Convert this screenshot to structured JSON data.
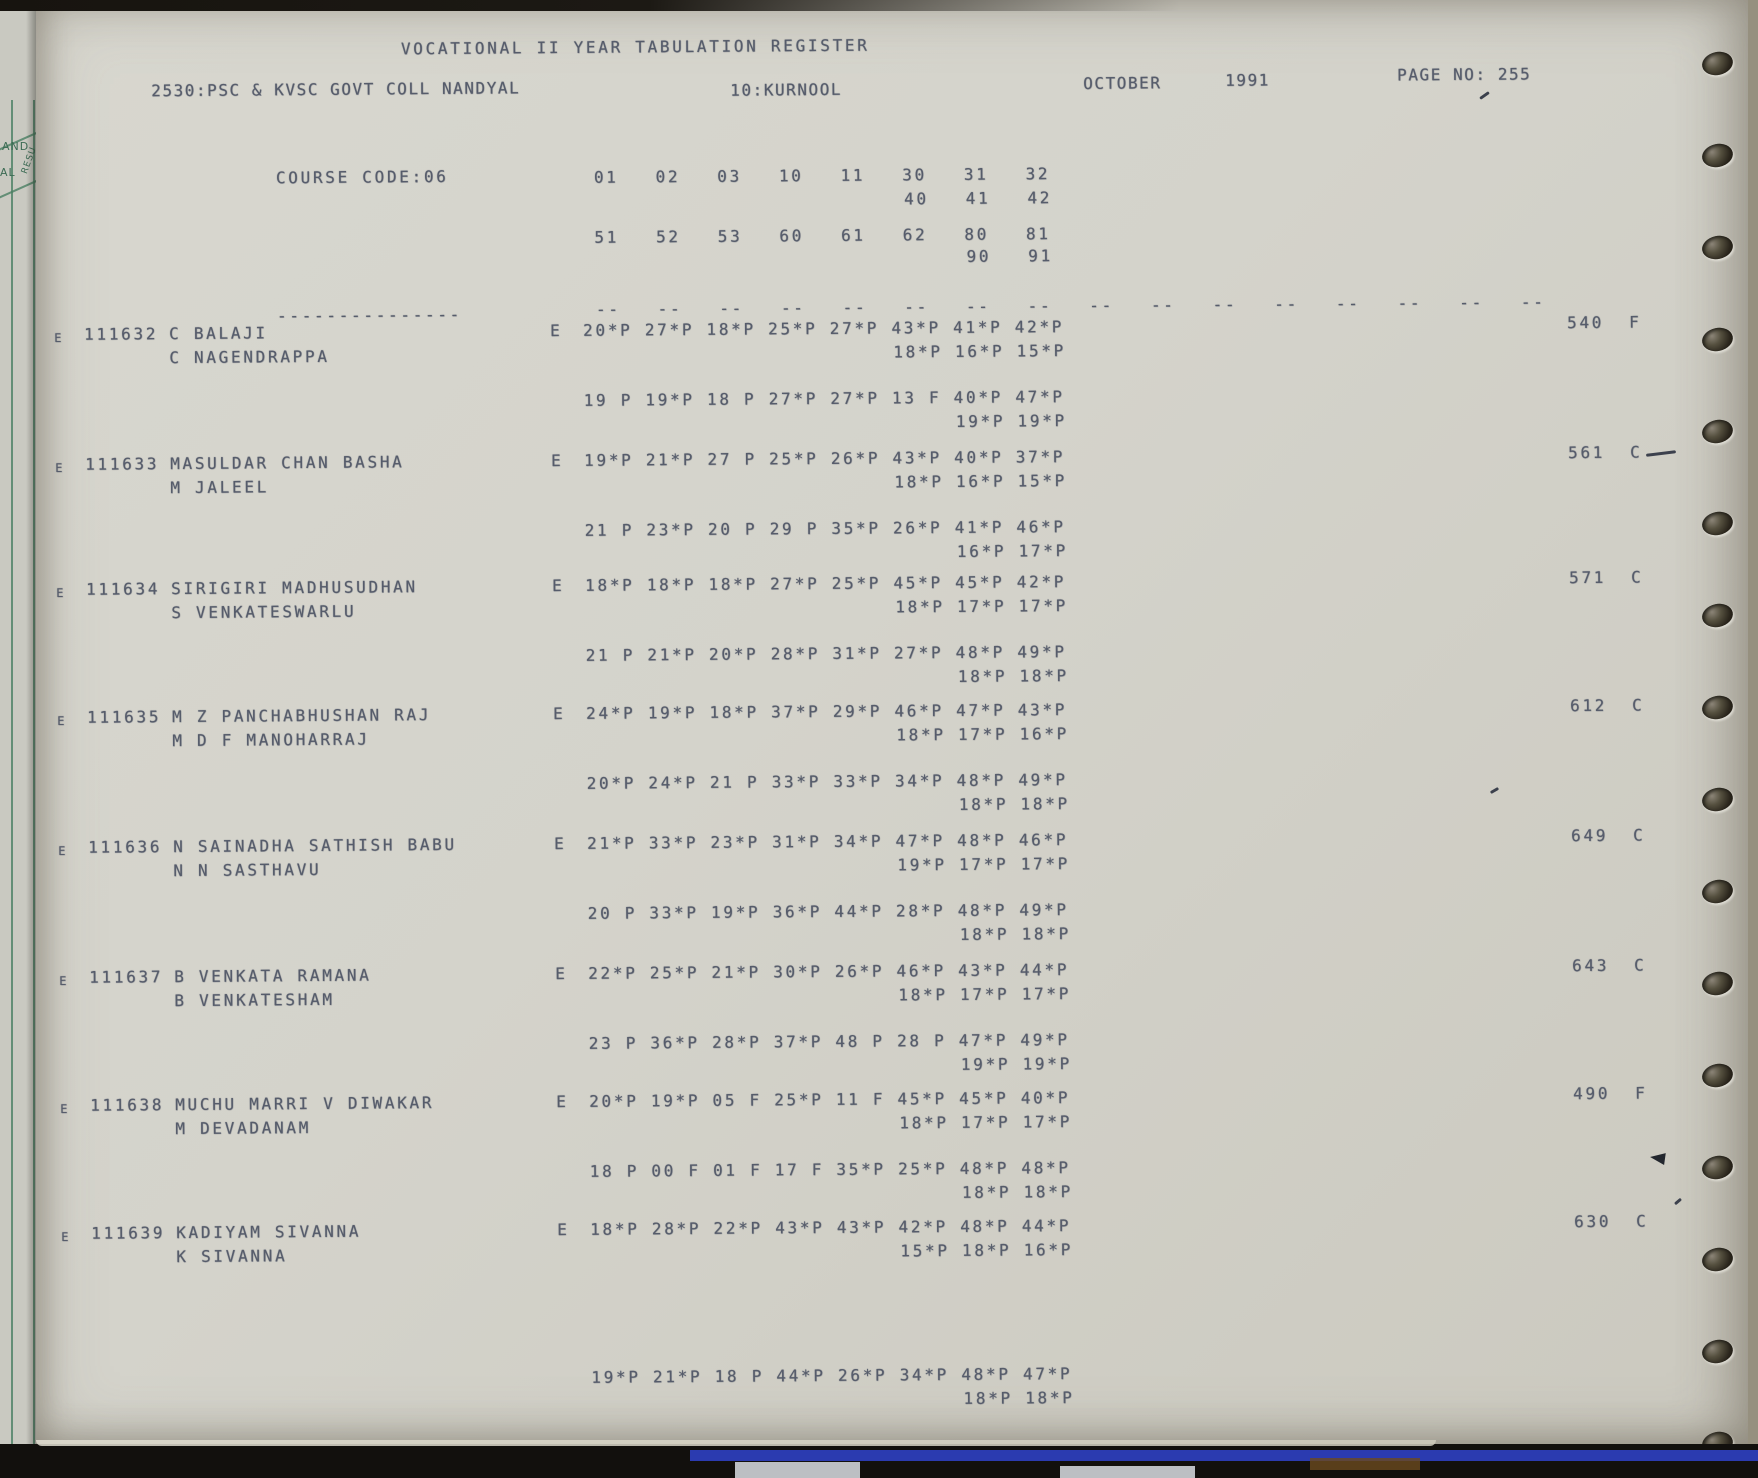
{
  "header": {
    "title": "VOCATIONAL II YEAR TABULATION REGISTER",
    "college": "2530:PSC & KVSC GOVT COLL NANDYAL",
    "district": "10:KURNOOL",
    "month": "OCTOBER",
    "year": "1991",
    "page_no": "PAGE NO: 255"
  },
  "course": {
    "label": "COURSE CODE:06",
    "codes_row1": [
      "01",
      "02",
      "03",
      "10",
      "11",
      "30",
      "31",
      "32"
    ],
    "codes_row1b": [
      "40",
      "41",
      "42"
    ],
    "codes_row2": [
      "51",
      "52",
      "53",
      "60",
      "61",
      "62",
      "80",
      "81"
    ],
    "codes_row2b": [
      "90",
      "91"
    ],
    "dash_label": "---------------",
    "dash_columns": [
      "--",
      "--",
      "--",
      "--",
      "--",
      "--",
      "--",
      "--",
      "--",
      "--",
      "--",
      "--",
      "--",
      "--",
      "--",
      "--"
    ]
  },
  "students": [
    {
      "medium": "E",
      "roll": "111632",
      "name": "C BALAJI",
      "father_name": "C NAGENDRAPPA",
      "flag": "E",
      "marks_row1": [
        "20*P",
        "27*P",
        "18*P",
        "25*P",
        "27*P",
        "43*P",
        "41*P",
        "42*P"
      ],
      "marks_row1b": [
        "18*P",
        "16*P",
        "15*P"
      ],
      "marks_row2": [
        "19 P",
        "19*P",
        "18 P",
        "27*P",
        "27*P",
        "13 F",
        "40*P",
        "47*P"
      ],
      "marks_row2b": [
        "19*P",
        "19*P"
      ],
      "total": "540",
      "result": "F"
    },
    {
      "medium": "E",
      "roll": "111633",
      "name": "MASULDAR CHAN BASHA",
      "father_name": "M JALEEL",
      "flag": "E",
      "marks_row1": [
        "19*P",
        "21*P",
        "27 P",
        "25*P",
        "26*P",
        "43*P",
        "40*P",
        "37*P"
      ],
      "marks_row1b": [
        "18*P",
        "16*P",
        "15*P"
      ],
      "marks_row2": [
        "21 P",
        "23*P",
        "20 P",
        "29 P",
        "35*P",
        "26*P",
        "41*P",
        "46*P"
      ],
      "marks_row2b": [
        "16*P",
        "17*P"
      ],
      "total": "561",
      "result": "C"
    },
    {
      "medium": "E",
      "roll": "111634",
      "name": "SIRIGIRI MADHUSUDHAN",
      "father_name": "S VENKATESWARLU",
      "flag": "E",
      "marks_row1": [
        "18*P",
        "18*P",
        "18*P",
        "27*P",
        "25*P",
        "45*P",
        "45*P",
        "42*P"
      ],
      "marks_row1b": [
        "18*P",
        "17*P",
        "17*P"
      ],
      "marks_row2": [
        "21 P",
        "21*P",
        "20*P",
        "28*P",
        "31*P",
        "27*P",
        "48*P",
        "49*P"
      ],
      "marks_row2b": [
        "18*P",
        "18*P"
      ],
      "total": "571",
      "result": "C"
    },
    {
      "medium": "E",
      "roll": "111635",
      "name": "M Z PANCHABHUSHAN RAJ",
      "father_name": "M D F MANOHARRAJ",
      "flag": "E",
      "marks_row1": [
        "24*P",
        "19*P",
        "18*P",
        "37*P",
        "29*P",
        "46*P",
        "47*P",
        "43*P"
      ],
      "marks_row1b": [
        "18*P",
        "17*P",
        "16*P"
      ],
      "marks_row2": [
        "20*P",
        "24*P",
        "21 P",
        "33*P",
        "33*P",
        "34*P",
        "48*P",
        "49*P"
      ],
      "marks_row2b": [
        "18*P",
        "18*P"
      ],
      "total": "612",
      "result": "C"
    },
    {
      "medium": "E",
      "roll": "111636",
      "name": "N SAINADHA SATHISH BABU",
      "father_name": "N N SASTHAVU",
      "flag": "E",
      "marks_row1": [
        "21*P",
        "33*P",
        "23*P",
        "31*P",
        "34*P",
        "47*P",
        "48*P",
        "46*P"
      ],
      "marks_row1b": [
        "19*P",
        "17*P",
        "17*P"
      ],
      "marks_row2": [
        "20 P",
        "33*P",
        "19*P",
        "36*P",
        "44*P",
        "28*P",
        "48*P",
        "49*P"
      ],
      "marks_row2b": [
        "18*P",
        "18*P"
      ],
      "total": "649",
      "result": "C"
    },
    {
      "medium": "E",
      "roll": "111637",
      "name": "B VENKATA RAMANA",
      "father_name": "B VENKATESHAM",
      "flag": "E",
      "marks_row1": [
        "22*P",
        "25*P",
        "21*P",
        "30*P",
        "26*P",
        "46*P",
        "43*P",
        "44*P"
      ],
      "marks_row1b": [
        "18*P",
        "17*P",
        "17*P"
      ],
      "marks_row2": [
        "23 P",
        "36*P",
        "28*P",
        "37*P",
        "48 P",
        "28 P",
        "47*P",
        "49*P"
      ],
      "marks_row2b": [
        "19*P",
        "19*P"
      ],
      "total": "643",
      "result": "C"
    },
    {
      "medium": "E",
      "roll": "111638",
      "name": "MUCHU MARRI V DIWAKAR",
      "father_name": "M DEVADANAM",
      "flag": "E",
      "marks_row1": [
        "20*P",
        "19*P",
        "05 F",
        "25*P",
        "11 F",
        "45*P",
        "45*P",
        "40*P"
      ],
      "marks_row1b": [
        "18*P",
        "17*P",
        "17*P"
      ],
      "marks_row2": [
        "18 P",
        "00 F",
        "01 F",
        "17 F",
        "35*P",
        "25*P",
        "48*P",
        "48*P"
      ],
      "marks_row2b": [
        "18*P",
        "18*P"
      ],
      "total": "490",
      "result": "F"
    },
    {
      "medium": "E",
      "roll": "111639",
      "name": "KADIYAM SIVANNA",
      "father_name": "K SIVANNA",
      "flag": "E",
      "marks_row1": [
        "18*P",
        "28*P",
        "22*P",
        "43*P",
        "43*P",
        "42*P",
        "48*P",
        "44*P"
      ],
      "marks_row1b": [
        "15*P",
        "18*P",
        "16*P"
      ],
      "marks_row2": [
        "19*P",
        "21*P",
        "18 P",
        "44*P",
        "26*P",
        "34*P",
        "48*P",
        "47*P"
      ],
      "marks_row2b": [
        "18*P",
        "18*P"
      ],
      "total": "630",
      "result": "C"
    }
  ],
  "margin_fragments": {
    "f1": "AND",
    "f2": "AL",
    "f3": "RESU"
  },
  "colors": {
    "paper": "#d4d3cb",
    "ink": "#565c6b",
    "binding_blue": "#2b3bb0",
    "hole_dark": "#2a251c"
  }
}
